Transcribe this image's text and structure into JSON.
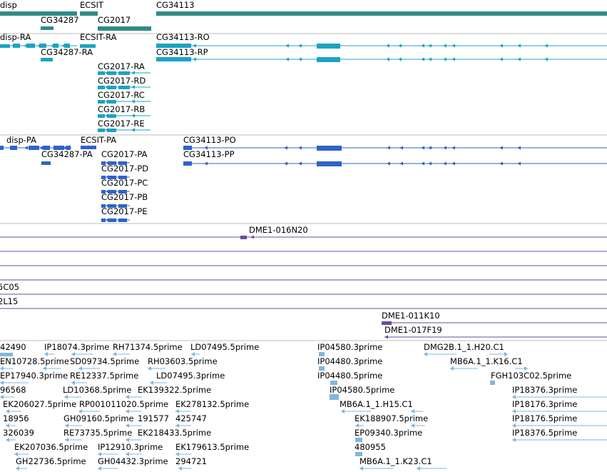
{
  "colors": {
    "gene": "#2e8b87",
    "transcript_cdna": "#1ba3c4",
    "transcript_protein": "#2f63c9",
    "clone": "#6a4aa4",
    "est": "#7fb7de",
    "separator": "#bdbdbd"
  },
  "tracks": {
    "genes": [
      {
        "label": "disp"
      },
      {
        "label": "ECSIT"
      },
      {
        "label": "CG34113"
      },
      {
        "label": "CG34287"
      },
      {
        "label": "CG2017"
      }
    ],
    "transcripts": [
      {
        "label": "disp-RA"
      },
      {
        "label": "ECSIT-RA"
      },
      {
        "label": "CG34113-RO"
      },
      {
        "label": "CG34287-RA"
      },
      {
        "label": "CG34113-RP"
      },
      {
        "label": "CG2017-RA"
      },
      {
        "label": "CG2017-RD"
      },
      {
        "label": "CG2017-RC"
      },
      {
        "label": "CG2017-RB"
      },
      {
        "label": "CG2017-RE"
      }
    ],
    "proteins": [
      {
        "label": "disp-PA"
      },
      {
        "label": "ECSIT-PA"
      },
      {
        "label": "CG34113-PO"
      },
      {
        "label": "CG34287-PA"
      },
      {
        "label": "CG2017-PA"
      },
      {
        "label": "CG34113-PP"
      },
      {
        "label": "CG2017-PD"
      },
      {
        "label": "CG2017-PC"
      },
      {
        "label": "CG2017-PB"
      },
      {
        "label": "CG2017-PE"
      }
    ],
    "clones": [
      {
        "label": "DME1-016N20"
      },
      {
        "label": "5C05"
      },
      {
        "label": "2L15"
      },
      {
        "label": "DME1-011K10"
      },
      {
        "label": "DME1-017F19"
      }
    ],
    "ests": [
      {
        "label": "42490"
      },
      {
        "label": "IP18074.3prime"
      },
      {
        "label": "RH71374.5prime"
      },
      {
        "label": "LD07495.5prime"
      },
      {
        "label": "IP04580.3prime"
      },
      {
        "label": "DMG2B.1_1.H20.C1"
      },
      {
        "label": "EN10728.5prime"
      },
      {
        "label": "SD09734.5prime"
      },
      {
        "label": "RH03603.5prime"
      },
      {
        "label": "IP04480.3prime"
      },
      {
        "label": "MB6A.1_1.K16.C1"
      },
      {
        "label": "EP17940.3prime"
      },
      {
        "label": "RE12337.5prime"
      },
      {
        "label": "LD07495.3prime"
      },
      {
        "label": "IP04480.5prime"
      },
      {
        "label": "FGH103C02.5prime"
      },
      {
        "label": "96568"
      },
      {
        "label": "LD10368.5prime"
      },
      {
        "label": "EK139322.5prime"
      },
      {
        "label": "IP04580.5prime"
      },
      {
        "label": "IP18376.3prime"
      },
      {
        "label": "EK206027.5prime"
      },
      {
        "label": "RP001011020.5prime"
      },
      {
        "label": "EK278132.5prime"
      },
      {
        "label": "MB6A.1_1.H15.C1"
      },
      {
        "label": "IP18176.3prime"
      },
      {
        "label": "18956"
      },
      {
        "label": "GH09160.5prime"
      },
      {
        "label": "191577"
      },
      {
        "label": "425747"
      },
      {
        "label": "EK188907.5prime"
      },
      {
        "label": "IP18176.5prime"
      },
      {
        "label": "326039"
      },
      {
        "label": "RE73735.5prime"
      },
      {
        "label": "EK218433.5prime"
      },
      {
        "label": "EP09340.3prime"
      },
      {
        "label": "IP18376.5prime"
      },
      {
        "label": "EK207036.5prime"
      },
      {
        "label": "IP12910.3prime"
      },
      {
        "label": "EK179613.5prime"
      },
      {
        "label": "480955"
      },
      {
        "label": "GH22736.5prime"
      },
      {
        "label": "GH04432.3prime"
      },
      {
        "label": "294721"
      },
      {
        "label": "MB6A.1_1.K23.C1"
      }
    ]
  }
}
